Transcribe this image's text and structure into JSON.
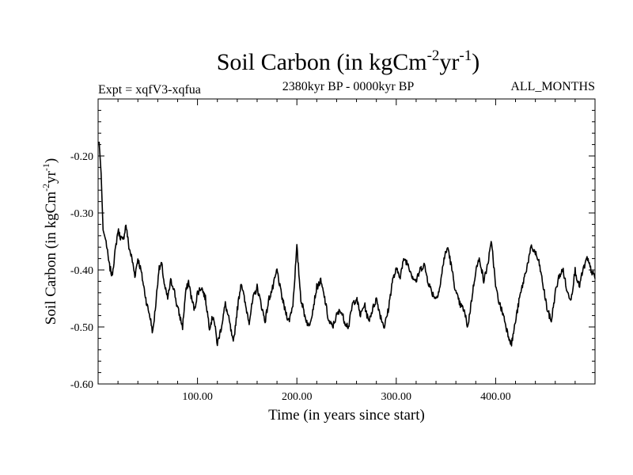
{
  "chart_data": {
    "type": "line",
    "title": {
      "main": "Soil Carbon (in kgCm",
      "sup1": "-2",
      "mid": "yr",
      "sup2": "-1",
      "end": ")"
    },
    "subtitle_left": "Expt = xqfV3-xqfua",
    "subtitle_center": "2380kyr BP - 0000kyr BP",
    "subtitle_right": "ALL_MONTHS",
    "xlabel": "Time (in years since start)",
    "ylabel": {
      "main": "Soil Carbon (in kgCm",
      "sup1": "-2",
      "mid": "yr",
      "sup2": "-1",
      "end": ")"
    },
    "xlim": [
      0,
      500
    ],
    "ylim": [
      -0.6,
      -0.1
    ],
    "x_major_ticks": [
      100,
      200,
      300,
      400
    ],
    "x_major_tick_labels": [
      "100.00",
      "200.00",
      "300.00",
      "400.00"
    ],
    "y_major_ticks": [
      -0.6,
      -0.5,
      -0.4,
      -0.3,
      -0.2
    ],
    "y_major_tick_labels": [
      "-0.60",
      "-0.50",
      "-0.40",
      "-0.30",
      "-0.20"
    ],
    "x_minor_step": 20,
    "y_minor_step": 0.02,
    "line_color": "#000000",
    "series": [
      {
        "name": "Soil Carbon",
        "x": [
          1,
          3,
          5,
          8,
          11,
          14,
          17,
          20,
          22,
          25,
          28,
          31,
          34,
          37,
          40,
          43,
          46,
          49,
          52,
          55,
          58,
          61,
          64,
          67,
          70,
          73,
          76,
          79,
          82,
          85,
          88,
          91,
          94,
          97,
          100,
          104,
          108,
          112,
          116,
          120,
          124,
          128,
          132,
          136,
          140,
          144,
          148,
          152,
          156,
          160,
          164,
          168,
          172,
          176,
          180,
          184,
          188,
          192,
          196,
          200,
          204,
          208,
          212,
          216,
          220,
          224,
          228,
          232,
          236,
          240,
          244,
          248,
          252,
          256,
          260,
          264,
          268,
          272,
          276,
          280,
          284,
          288,
          292,
          296,
          300,
          304,
          308,
          312,
          316,
          320,
          324,
          328,
          332,
          336,
          340,
          344,
          348,
          352,
          356,
          360,
          364,
          368,
          372,
          376,
          380,
          384,
          388,
          392,
          396,
          400,
          404,
          408,
          412,
          416,
          420,
          424,
          428,
          432,
          436,
          440,
          444,
          448,
          452,
          456,
          460,
          464,
          468,
          472,
          476,
          480,
          484,
          488,
          492,
          496,
          500
        ],
        "values": [
          -0.175,
          -0.23,
          -0.33,
          -0.35,
          -0.39,
          -0.41,
          -0.37,
          -0.33,
          -0.34,
          -0.35,
          -0.32,
          -0.36,
          -0.38,
          -0.41,
          -0.38,
          -0.4,
          -0.43,
          -0.46,
          -0.48,
          -0.51,
          -0.46,
          -0.4,
          -0.39,
          -0.43,
          -0.45,
          -0.42,
          -0.43,
          -0.46,
          -0.48,
          -0.5,
          -0.44,
          -0.42,
          -0.45,
          -0.47,
          -0.44,
          -0.43,
          -0.45,
          -0.5,
          -0.48,
          -0.53,
          -0.5,
          -0.46,
          -0.49,
          -0.53,
          -0.47,
          -0.42,
          -0.46,
          -0.49,
          -0.45,
          -0.43,
          -0.46,
          -0.49,
          -0.45,
          -0.43,
          -0.4,
          -0.44,
          -0.47,
          -0.49,
          -0.46,
          -0.36,
          -0.45,
          -0.48,
          -0.5,
          -0.47,
          -0.43,
          -0.42,
          -0.45,
          -0.49,
          -0.5,
          -0.48,
          -0.47,
          -0.49,
          -0.5,
          -0.46,
          -0.45,
          -0.48,
          -0.46,
          -0.49,
          -0.47,
          -0.45,
          -0.48,
          -0.5,
          -0.47,
          -0.42,
          -0.4,
          -0.41,
          -0.38,
          -0.39,
          -0.41,
          -0.42,
          -0.4,
          -0.39,
          -0.42,
          -0.44,
          -0.45,
          -0.43,
          -0.38,
          -0.36,
          -0.4,
          -0.44,
          -0.46,
          -0.47,
          -0.5,
          -0.45,
          -0.4,
          -0.38,
          -0.42,
          -0.39,
          -0.35,
          -0.43,
          -0.46,
          -0.48,
          -0.51,
          -0.53,
          -0.49,
          -0.45,
          -0.42,
          -0.39,
          -0.36,
          -0.37,
          -0.39,
          -0.43,
          -0.47,
          -0.49,
          -0.44,
          -0.41,
          -0.4,
          -0.44,
          -0.45,
          -0.4,
          -0.43,
          -0.4,
          -0.38,
          -0.4,
          -0.415
        ]
      }
    ]
  }
}
